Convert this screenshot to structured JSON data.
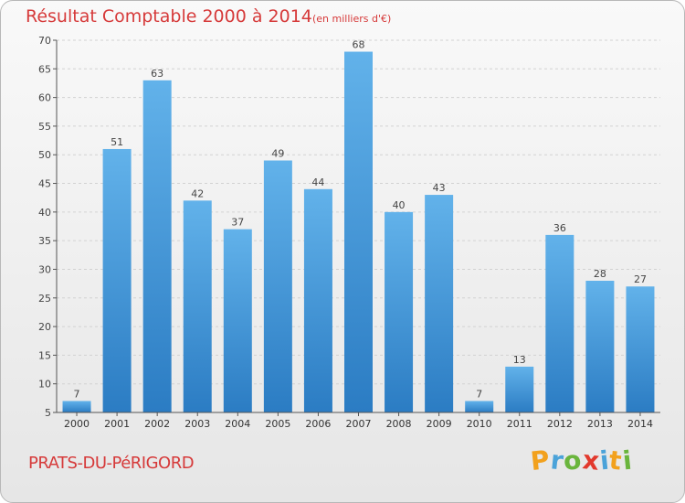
{
  "title": "Résultat Comptable 2000 à 2014",
  "subtitle": "(en milliers d'€)",
  "commune": "PRATS-DU-PéRIGORD",
  "brand": {
    "letters": [
      {
        "ch": "P",
        "color": "#f2a11d"
      },
      {
        "ch": "r",
        "color": "#4ba3d9"
      },
      {
        "ch": "o",
        "color": "#6ab53d"
      },
      {
        "ch": "x",
        "color": "#e2392d"
      },
      {
        "ch": "i",
        "color": "#4ba3d9"
      },
      {
        "ch": "t",
        "color": "#f2a11d"
      },
      {
        "ch": "i",
        "color": "#6ab53d"
      }
    ]
  },
  "colors": {
    "bar_light": "#62b2ea",
    "bar_dark": "#2b7cc3",
    "accent": "#d63a3a"
  },
  "chart_data": {
    "type": "bar",
    "title": "Résultat Comptable 2000 à 2014",
    "xlabel": "",
    "ylabel": "",
    "categories": [
      "2000",
      "2001",
      "2002",
      "2003",
      "2004",
      "2005",
      "2006",
      "2007",
      "2008",
      "2009",
      "2010",
      "2011",
      "2012",
      "2013",
      "2014"
    ],
    "values": [
      7,
      51,
      63,
      42,
      37,
      49,
      44,
      68,
      40,
      43,
      7,
      13,
      36,
      28,
      27
    ],
    "ylim": [
      5,
      70
    ],
    "yticks": [
      5,
      10,
      15,
      20,
      25,
      30,
      35,
      40,
      45,
      50,
      55,
      60,
      65,
      70
    ],
    "grid": true
  }
}
